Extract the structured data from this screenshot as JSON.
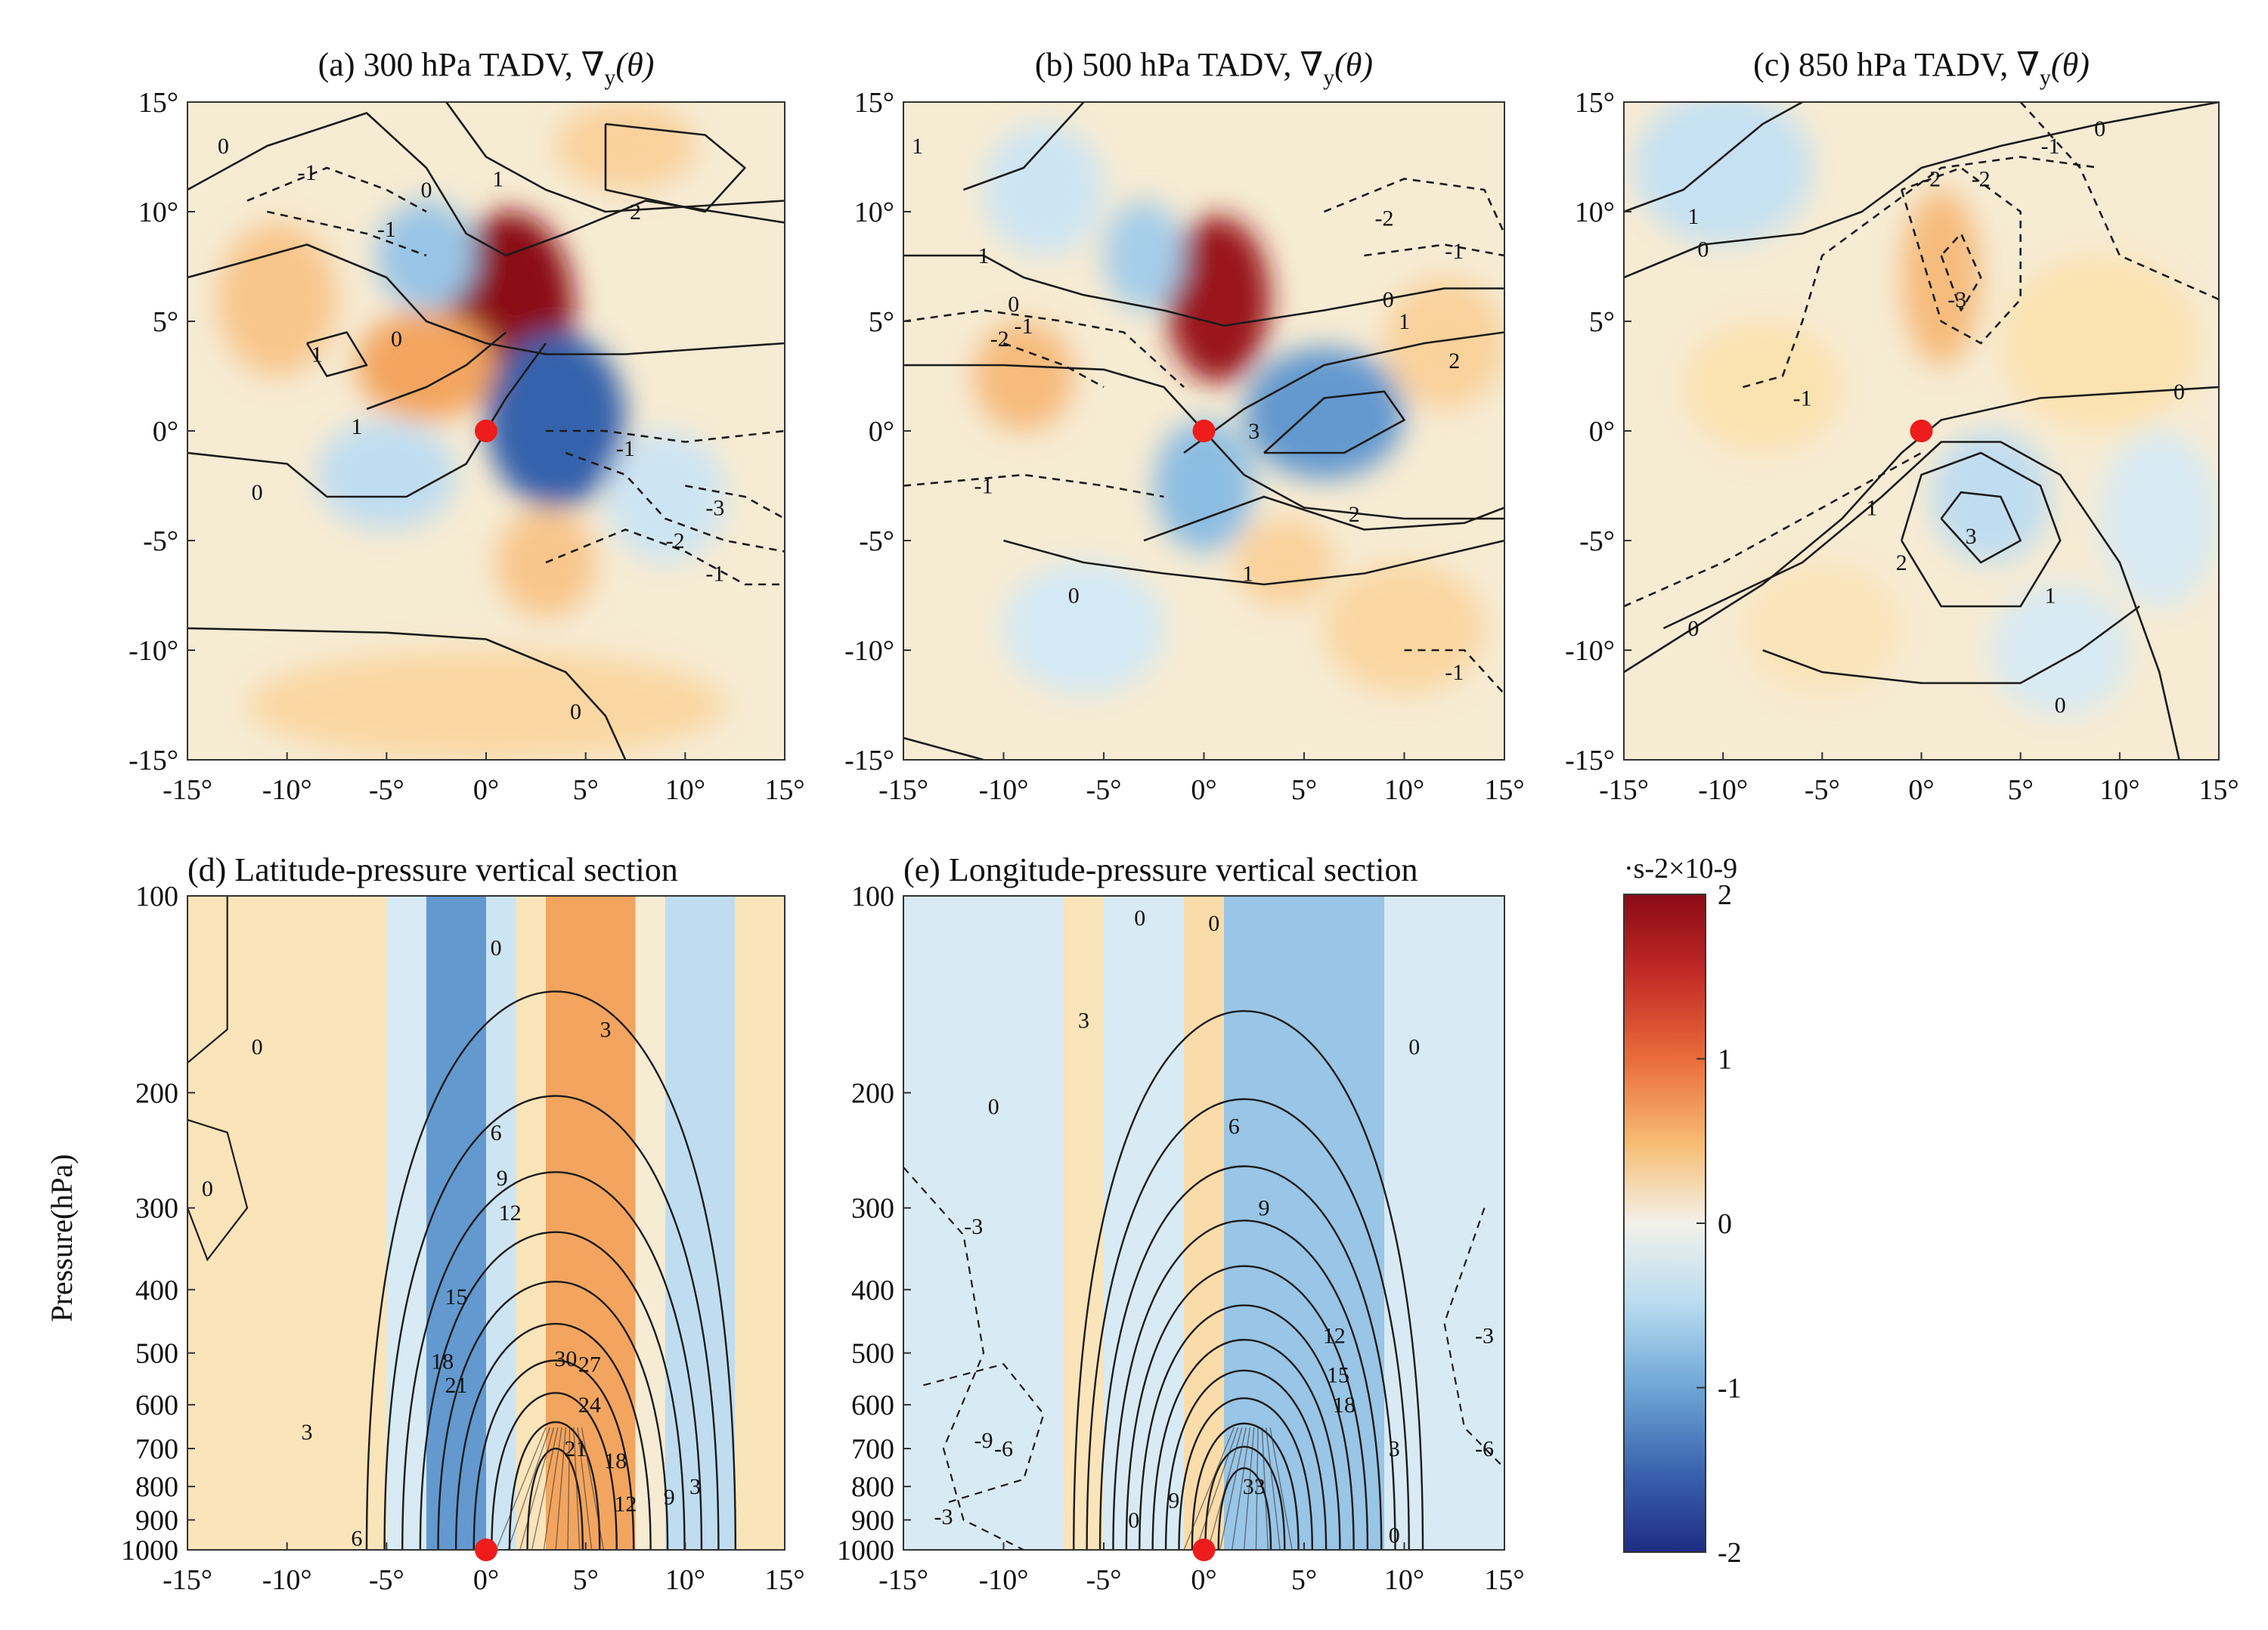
{
  "chart_data": [
    {
      "panel": "a",
      "type": "contour",
      "title": "(a) 300 hPa TADV, ∇y(θ)",
      "title_text": "(a) 300 hPa TADV, ∇",
      "title_sub": "y",
      "title_tail": "(θ)",
      "xlim": [
        -15,
        15
      ],
      "ylim": [
        -15,
        15
      ],
      "x_ticks": [
        "-15°",
        "-10°",
        "-5°",
        "0°",
        "5°",
        "10°",
        "15°"
      ],
      "y_ticks": [
        "15°",
        "10°",
        "5°",
        "0°",
        "-5°",
        "-10°",
        "-15°"
      ],
      "marker": {
        "x": 0,
        "y": 0
      },
      "fill_blobs": [
        {
          "x": 1.2,
          "y": 5.5,
          "v": 2.0,
          "rx": 3.2,
          "ry": 4.5
        },
        {
          "x": -3.0,
          "y": 3.0,
          "v": 0.9,
          "rx": 3.5,
          "ry": 2.5
        },
        {
          "x": 3.5,
          "y": 0.5,
          "v": -1.6,
          "rx": 3.5,
          "ry": 4.0
        },
        {
          "x": -3.0,
          "y": 8.0,
          "v": -0.8,
          "rx": 2.5,
          "ry": 2.5
        },
        {
          "x": -10.5,
          "y": 6.0,
          "v": 0.6,
          "rx": 3.0,
          "ry": 3.5
        },
        {
          "x": 3.0,
          "y": -6.0,
          "v": 0.6,
          "rx": 2.5,
          "ry": 2.5
        },
        {
          "x": -5.0,
          "y": -2.0,
          "v": -0.5,
          "rx": 3.5,
          "ry": 2.5
        },
        {
          "x": 9.0,
          "y": -3.0,
          "v": -0.4,
          "rx": 3.0,
          "ry": 3.0
        },
        {
          "x": 7.0,
          "y": 13.0,
          "v": 0.5,
          "rx": 3.5,
          "ry": 2.0
        },
        {
          "x": 0.0,
          "y": -12.5,
          "v": 0.45,
          "rx": 12.0,
          "ry": 2.5
        }
      ],
      "contour_labels": [
        {
          "x": -13.2,
          "y": 13.0,
          "text": "0"
        },
        {
          "x": -3.0,
          "y": 11.0,
          "text": "0"
        },
        {
          "x": 0.6,
          "y": 11.5,
          "text": "1"
        },
        {
          "x": 7.5,
          "y": 10.0,
          "text": "2"
        },
        {
          "x": -9.0,
          "y": 11.8,
          "text": "-1"
        },
        {
          "x": -5.0,
          "y": 9.2,
          "text": "-1"
        },
        {
          "x": -4.5,
          "y": 4.2,
          "text": "0"
        },
        {
          "x": -8.5,
          "y": 3.5,
          "text": "1"
        },
        {
          "x": -6.5,
          "y": 0.2,
          "text": "1"
        },
        {
          "x": -11.5,
          "y": -2.8,
          "text": "0"
        },
        {
          "x": 7.0,
          "y": -0.8,
          "text": "-1"
        },
        {
          "x": 11.5,
          "y": -3.5,
          "text": "-3"
        },
        {
          "x": 9.5,
          "y": -5.0,
          "text": "-2"
        },
        {
          "x": 11.5,
          "y": -6.5,
          "text": "-1"
        },
        {
          "x": 4.5,
          "y": -12.8,
          "text": "0"
        }
      ]
    },
    {
      "panel": "b",
      "type": "contour",
      "title": "(b) 500 hPa TADV, ∇y(θ)",
      "title_text": "(b) 500 hPa TADV, ∇",
      "title_sub": "y",
      "title_tail": "(θ)",
      "xlim": [
        -15,
        15
      ],
      "ylim": [
        -15,
        15
      ],
      "x_ticks": [
        "-15°",
        "-10°",
        "-5°",
        "0°",
        "5°",
        "10°",
        "15°"
      ],
      "y_ticks": [
        "15°",
        "10°",
        "5°",
        "0°",
        "-5°",
        "-10°",
        "-15°"
      ],
      "marker": {
        "x": 0,
        "y": 0
      },
      "fill_blobs": [
        {
          "x": 0.7,
          "y": 6.0,
          "v": 1.9,
          "rx": 2.6,
          "ry": 3.8
        },
        {
          "x": 6.0,
          "y": 0.8,
          "v": -1.2,
          "rx": 4.0,
          "ry": 3.0
        },
        {
          "x": 0.0,
          "y": -2.5,
          "v": -0.9,
          "rx": 2.5,
          "ry": 3.0
        },
        {
          "x": -9.0,
          "y": 2.5,
          "v": 0.7,
          "rx": 2.5,
          "ry": 2.5
        },
        {
          "x": -3.0,
          "y": 8.0,
          "v": -0.7,
          "rx": 2.0,
          "ry": 2.5
        },
        {
          "x": -8.0,
          "y": 11.0,
          "v": -0.4,
          "rx": 3.0,
          "ry": 3.0
        },
        {
          "x": 4.0,
          "y": -6.0,
          "v": 0.5,
          "rx": 2.5,
          "ry": 2.0
        },
        {
          "x": 12.0,
          "y": 4.0,
          "v": 0.5,
          "rx": 3.0,
          "ry": 3.0
        },
        {
          "x": -6.0,
          "y": -9.0,
          "v": -0.35,
          "rx": 4.0,
          "ry": 3.0
        },
        {
          "x": 10.0,
          "y": -9.0,
          "v": 0.45,
          "rx": 4.0,
          "ry": 3.0
        }
      ],
      "contour_labels": [
        {
          "x": -14.3,
          "y": 13.0,
          "text": "1"
        },
        {
          "x": -11.0,
          "y": 8.0,
          "text": "1"
        },
        {
          "x": -9.5,
          "y": 5.8,
          "text": "0"
        },
        {
          "x": -9.0,
          "y": 4.8,
          "text": "-1"
        },
        {
          "x": -10.2,
          "y": 4.2,
          "text": "-2"
        },
        {
          "x": 9.0,
          "y": 9.7,
          "text": "-2"
        },
        {
          "x": 12.5,
          "y": 8.2,
          "text": "-1"
        },
        {
          "x": 9.2,
          "y": 6.0,
          "text": "0"
        },
        {
          "x": 10.0,
          "y": 5.0,
          "text": "1"
        },
        {
          "x": 12.5,
          "y": 3.2,
          "text": "2"
        },
        {
          "x": 2.5,
          "y": 0.0,
          "text": "3"
        },
        {
          "x": -11.0,
          "y": -2.5,
          "text": "-1"
        },
        {
          "x": 7.5,
          "y": -3.8,
          "text": "2"
        },
        {
          "x": 2.2,
          "y": -6.5,
          "text": "1"
        },
        {
          "x": -6.5,
          "y": -7.5,
          "text": "0"
        },
        {
          "x": 12.5,
          "y": -11.0,
          "text": "-1"
        }
      ]
    },
    {
      "panel": "c",
      "type": "contour",
      "title": "(c) 850 hPa TADV, ∇y(θ)",
      "title_text": "(c) 850 hPa TADV, ∇",
      "title_sub": "y",
      "title_tail": "(θ)",
      "xlim": [
        -15,
        15
      ],
      "ylim": [
        -15,
        15
      ],
      "x_ticks": [
        "-15°",
        "-10°",
        "-5°",
        "0°",
        "5°",
        "10°",
        "15°"
      ],
      "y_ticks": [
        "15°",
        "10°",
        "5°",
        "0°",
        "-5°",
        "-10°",
        "-15°"
      ],
      "marker": {
        "x": 0,
        "y": 0
      },
      "fill_blobs": [
        {
          "x": 1.0,
          "y": 7.0,
          "v": 0.7,
          "rx": 2.0,
          "ry": 4.0
        },
        {
          "x": -10.0,
          "y": 12.0,
          "v": -0.45,
          "rx": 4.5,
          "ry": 3.5
        },
        {
          "x": 3.5,
          "y": -3.0,
          "v": -0.5,
          "rx": 3.0,
          "ry": 3.0
        },
        {
          "x": -8.0,
          "y": 2.0,
          "v": 0.35,
          "rx": 4.0,
          "ry": 3.0
        },
        {
          "x": 9.0,
          "y": 4.0,
          "v": 0.35,
          "rx": 5.0,
          "ry": 4.0
        },
        {
          "x": -5.0,
          "y": -9.0,
          "v": 0.3,
          "rx": 4.0,
          "ry": 3.0
        },
        {
          "x": 7.0,
          "y": -10.0,
          "v": -0.3,
          "rx": 3.5,
          "ry": 3.0
        },
        {
          "x": 12.0,
          "y": -4.0,
          "v": -0.3,
          "rx": 3.0,
          "ry": 4.0
        }
      ],
      "contour_labels": [
        {
          "x": 9.0,
          "y": 13.8,
          "text": "0"
        },
        {
          "x": 6.5,
          "y": 13.0,
          "text": "-1"
        },
        {
          "x": -11.5,
          "y": 9.8,
          "text": "1"
        },
        {
          "x": -11.0,
          "y": 8.3,
          "text": "0"
        },
        {
          "x": 0.5,
          "y": 11.5,
          "text": "-2"
        },
        {
          "x": 3.0,
          "y": 11.5,
          "text": "-2"
        },
        {
          "x": 1.8,
          "y": 6.0,
          "text": "-3"
        },
        {
          "x": -6.0,
          "y": 1.5,
          "text": "-1"
        },
        {
          "x": 13.0,
          "y": 1.8,
          "text": "0"
        },
        {
          "x": -2.5,
          "y": -3.5,
          "text": "1"
        },
        {
          "x": 2.5,
          "y": -4.8,
          "text": "3"
        },
        {
          "x": -1.0,
          "y": -6.0,
          "text": "2"
        },
        {
          "x": 6.5,
          "y": -7.5,
          "text": "1"
        },
        {
          "x": -11.5,
          "y": -9.0,
          "text": "0"
        },
        {
          "x": 7.0,
          "y": -12.5,
          "text": "0"
        }
      ]
    },
    {
      "panel": "d",
      "type": "contour",
      "title": "(d) Latitude-pressure vertical section",
      "xlim": [
        -15,
        15
      ],
      "ylabel": "Pressure(hPa)",
      "x_ticks": [
        "-15°",
        "-10°",
        "-5°",
        "0°",
        "5°",
        "10°",
        "15°"
      ],
      "y_ticks": [
        "100",
        "200",
        "300",
        "400",
        "500",
        "600",
        "700",
        "800",
        "900",
        "1000"
      ],
      "pressure_levels": [
        100,
        200,
        300,
        400,
        500,
        600,
        700,
        800,
        900,
        1000
      ],
      "marker": {
        "x": 0,
        "p": 1000
      },
      "fill_columns": [
        {
          "x0": -5,
          "x1": -3,
          "v": -0.3
        },
        {
          "x0": -3,
          "x1": 0,
          "v": -1.2
        },
        {
          "x0": 0,
          "x1": 1.5,
          "v": -0.4
        },
        {
          "x0": 1.5,
          "x1": 3,
          "v": 0.3
        },
        {
          "x0": 3,
          "x1": 7.5,
          "v": 0.9
        },
        {
          "x0": 9,
          "x1": 12.5,
          "v": -0.5
        },
        {
          "x0": -15,
          "x1": -5,
          "v": 0.3
        },
        {
          "x0": 12.5,
          "x1": 15,
          "v": 0.3
        }
      ],
      "contours": {
        "center_x": 3.5,
        "levels": [
          3,
          6,
          9,
          12,
          15,
          18,
          21,
          24,
          27,
          30
        ]
      },
      "contour_labels": [
        {
          "x": -11.5,
          "p": 170,
          "text": "0"
        },
        {
          "x": 0.5,
          "p": 120,
          "text": "0"
        },
        {
          "x": 6,
          "p": 160,
          "text": "3"
        },
        {
          "x": 0.5,
          "p": 230,
          "text": "6"
        },
        {
          "x": 0.8,
          "p": 270,
          "text": "9"
        },
        {
          "x": 1.2,
          "p": 305,
          "text": "12"
        },
        {
          "x": -1.5,
          "p": 410,
          "text": "15"
        },
        {
          "x": -2.2,
          "p": 515,
          "text": "18"
        },
        {
          "x": -1.5,
          "p": 560,
          "text": "21"
        },
        {
          "x": 4.0,
          "p": 510,
          "text": "30"
        },
        {
          "x": 5.2,
          "p": 520,
          "text": "27"
        },
        {
          "x": 5.2,
          "p": 600,
          "text": "24"
        },
        {
          "x": 4.5,
          "p": 700,
          "text": "21"
        },
        {
          "x": 6.5,
          "p": 730,
          "text": "18"
        },
        {
          "x": 7.0,
          "p": 850,
          "text": "12"
        },
        {
          "x": 9.2,
          "p": 830,
          "text": "9"
        },
        {
          "x": 10.5,
          "p": 800,
          "text": "3"
        },
        {
          "x": -9.0,
          "p": 660,
          "text": "3"
        },
        {
          "x": -6.5,
          "p": 960,
          "text": "6"
        },
        {
          "x": -14.0,
          "p": 280,
          "text": "0"
        }
      ]
    },
    {
      "panel": "e",
      "type": "contour",
      "title": "(e) Longitude-pressure vertical section",
      "xlim": [
        -15,
        15
      ],
      "x_ticks": [
        "-15°",
        "-10°",
        "-5°",
        "0°",
        "5°",
        "10°",
        "15°"
      ],
      "y_ticks": [
        "100",
        "200",
        "300",
        "400",
        "500",
        "600",
        "700",
        "800",
        "900",
        "1000"
      ],
      "pressure_levels": [
        100,
        200,
        300,
        400,
        500,
        600,
        700,
        800,
        900,
        1000
      ],
      "marker": {
        "x": 0,
        "p": 1000
      },
      "fill_columns": [
        {
          "x0": -15,
          "x1": -7,
          "v": -0.3
        },
        {
          "x0": -7,
          "x1": -5,
          "v": 0.3
        },
        {
          "x0": -5,
          "x1": -1,
          "v": -0.3
        },
        {
          "x0": -1,
          "x1": 1,
          "v": 0.4
        },
        {
          "x0": 1,
          "x1": 9,
          "v": -0.8
        },
        {
          "x0": 9,
          "x1": 15,
          "v": -0.3
        }
      ],
      "contours": {
        "center_x": 2.0,
        "levels": [
          3,
          6,
          9,
          12,
          15,
          18,
          21,
          24,
          27,
          30,
          33,
          36
        ]
      },
      "contour_labels": [
        {
          "x": 0.5,
          "p": 110,
          "text": "0"
        },
        {
          "x": -3.2,
          "p": 108,
          "text": "0"
        },
        {
          "x": -10.5,
          "p": 210,
          "text": "0"
        },
        {
          "x": 10.5,
          "p": 170,
          "text": "0"
        },
        {
          "x": -6.0,
          "p": 155,
          "text": "3"
        },
        {
          "x": 1.5,
          "p": 225,
          "text": "6"
        },
        {
          "x": 3.0,
          "p": 300,
          "text": "9"
        },
        {
          "x": 6.5,
          "p": 470,
          "text": "12"
        },
        {
          "x": 6.7,
          "p": 540,
          "text": "15"
        },
        {
          "x": 7.0,
          "p": 600,
          "text": "18"
        },
        {
          "x": -11.5,
          "p": 320,
          "text": "-3"
        },
        {
          "x": -11.0,
          "p": 680,
          "text": "-9"
        },
        {
          "x": -10.0,
          "p": 700,
          "text": "-6"
        },
        {
          "x": -13.0,
          "p": 890,
          "text": "-3"
        },
        {
          "x": 9.5,
          "p": 700,
          "text": "3"
        },
        {
          "x": 14.0,
          "p": 470,
          "text": "-3"
        },
        {
          "x": 14.0,
          "p": 700,
          "text": "-6"
        },
        {
          "x": 9.5,
          "p": 950,
          "text": "0"
        },
        {
          "x": -3.5,
          "p": 900,
          "text": "0"
        },
        {
          "x": -1.5,
          "p": 840,
          "text": "9"
        },
        {
          "x": 2.5,
          "p": 800,
          "text": "33"
        }
      ]
    }
  ],
  "colorbar": {
    "unit_label": "·s-2×10-9",
    "range": [
      -2,
      2
    ],
    "ticks": [
      "2",
      "1",
      "0",
      "-1",
      "-2"
    ],
    "colors": {
      "max": "#8b0b15",
      "high": "#d6402f",
      "mid_high": "#f29a50",
      "low_pos": "#fbe2b1",
      "zero": "#f3f1ea",
      "low_neg": "#d3e9f5",
      "mid_low": "#7fb5df",
      "low": "#3a6fb6",
      "min": "#1e2c84"
    }
  },
  "marker_color": "#ee1c1c"
}
